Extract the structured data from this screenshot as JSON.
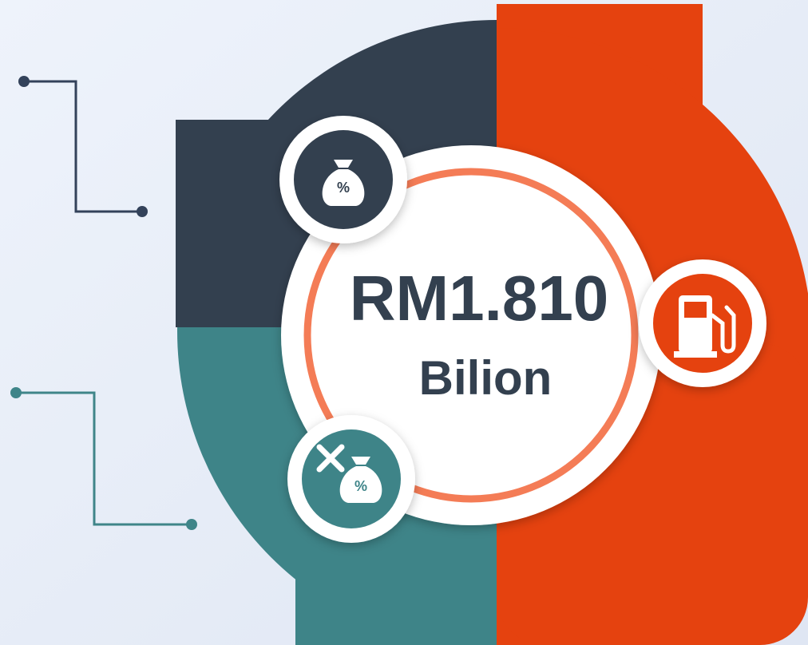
{
  "main": {
    "amount": "RM1.810",
    "unit": "Bilion"
  },
  "icons": [
    {
      "label": "%"
    },
    {
      "label": "%"
    }
  ]
}
